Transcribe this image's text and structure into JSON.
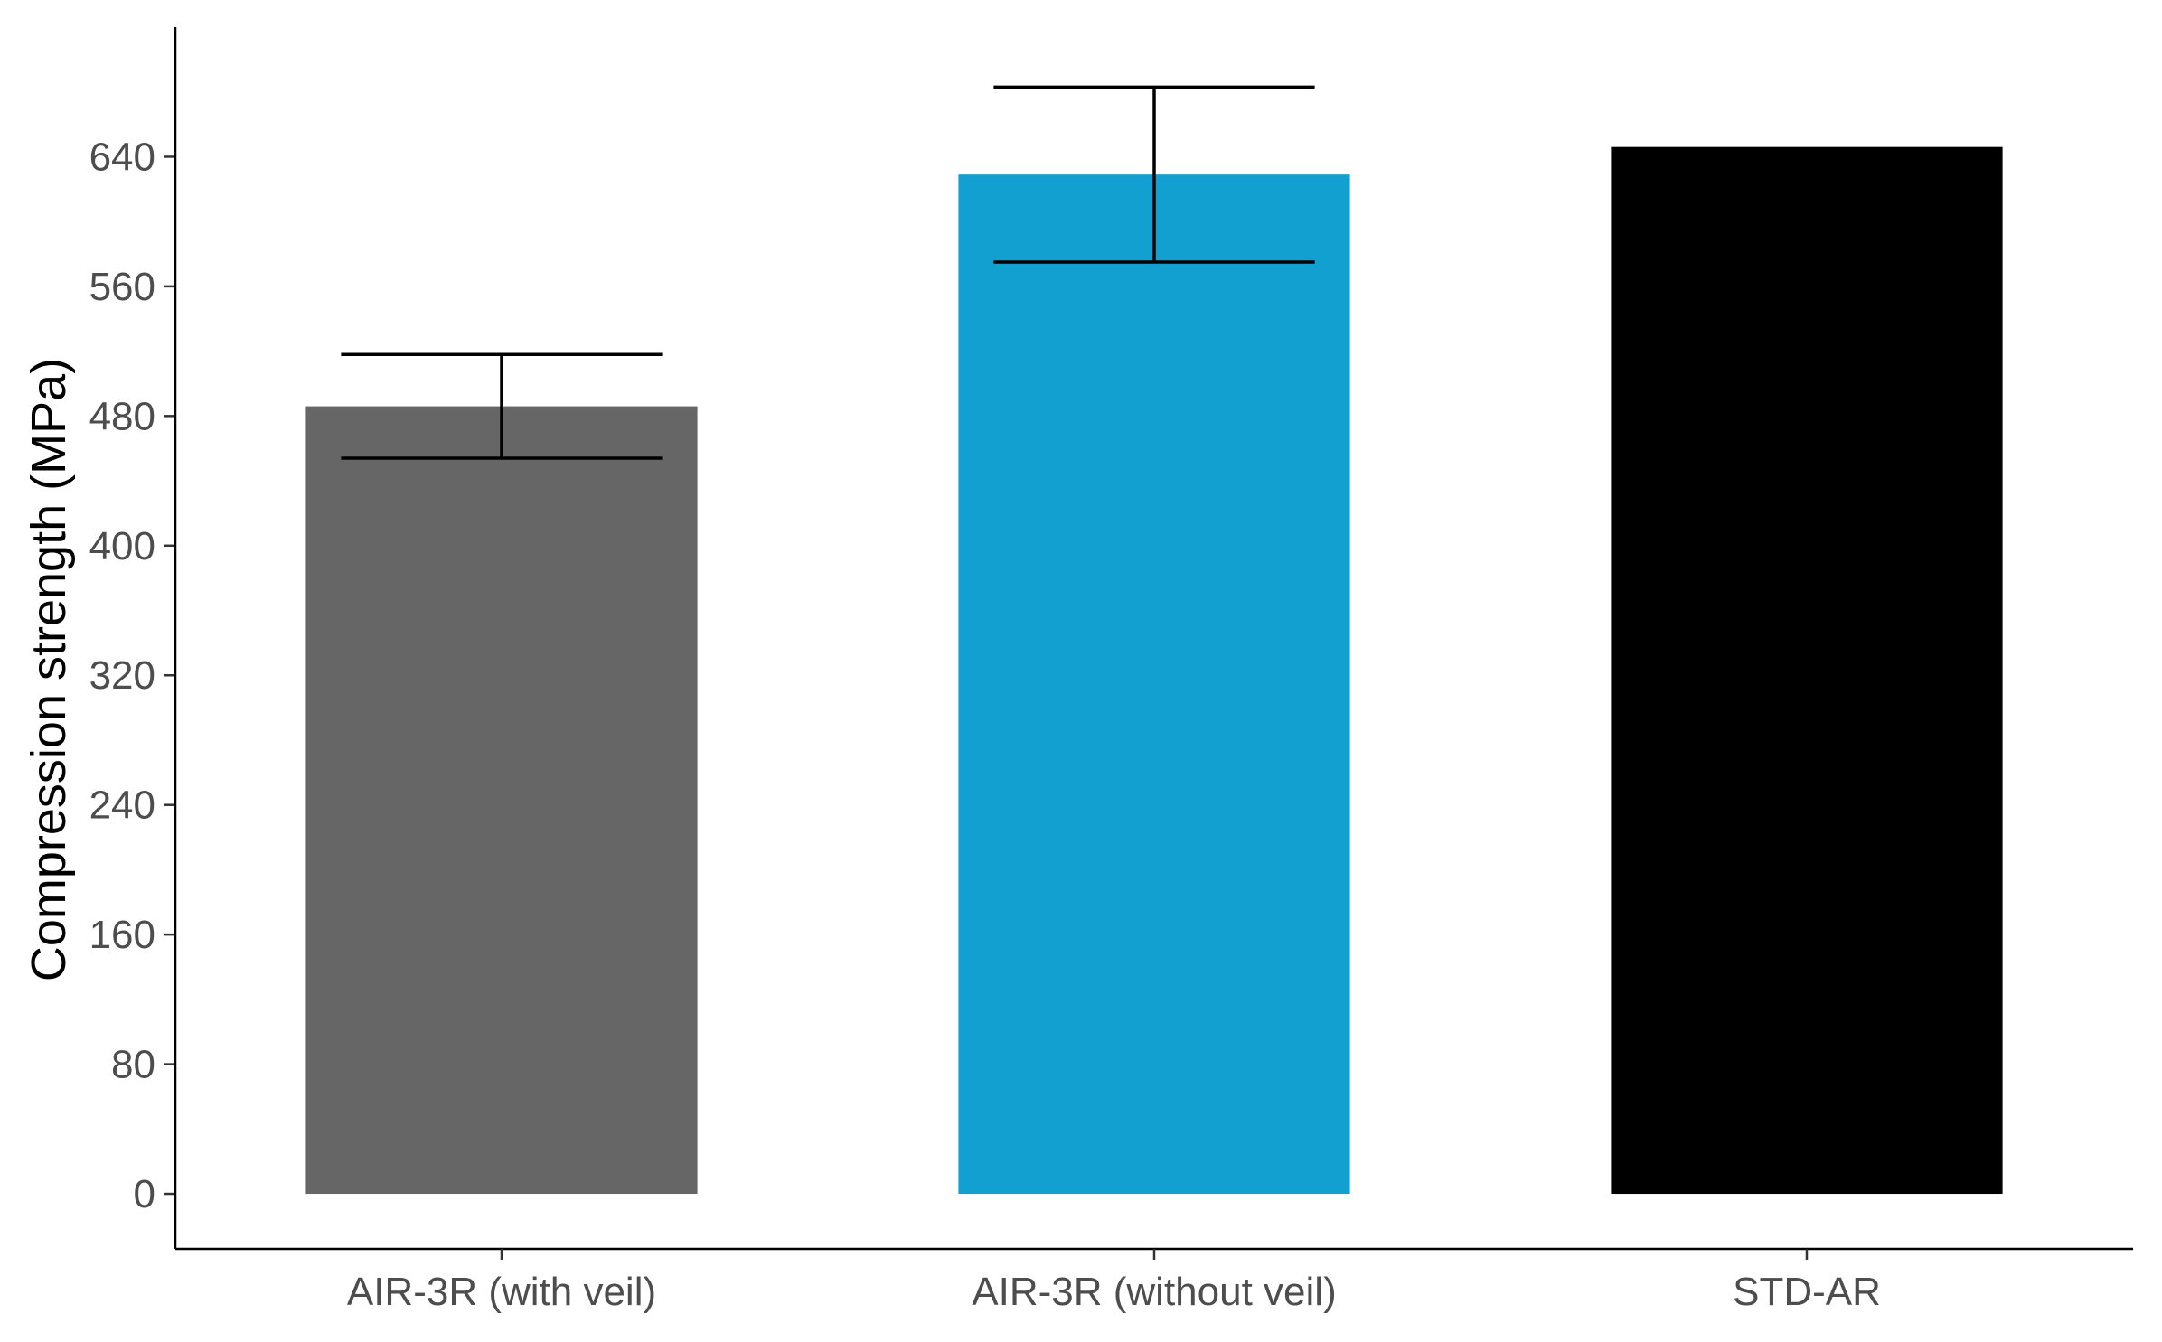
{
  "chart_data": {
    "type": "bar",
    "title": "",
    "xlabel": "",
    "ylabel": "Compression strength (MPa)",
    "categories": [
      "AIR-3R (with veil)",
      "AIR-3R (without veil)",
      "STD-AR"
    ],
    "values": [
      486,
      629,
      646
    ],
    "error_bars": [
      {
        "low": 454,
        "high": 518
      },
      {
        "low": 575,
        "high": 683
      },
      null
    ],
    "colors": [
      "#666666",
      "#11a0d0",
      "#000000"
    ],
    "ylim": [
      -34,
      720
    ],
    "yticks": [
      0,
      80,
      160,
      240,
      320,
      400,
      480,
      560,
      640
    ],
    "ytick_labels": [
      "0",
      "80",
      "160",
      "240",
      "320",
      "400",
      "480",
      "560",
      "640"
    ],
    "grid": false,
    "legend": "none"
  }
}
